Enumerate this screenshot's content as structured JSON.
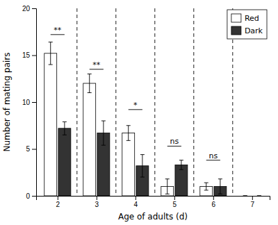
{
  "chart_data": {
    "type": "bar",
    "x": [
      2,
      3,
      4,
      5,
      6,
      7
    ],
    "series": [
      {
        "name": "Red",
        "color": "#ffffff",
        "values": [
          15.2,
          12.0,
          6.7,
          1.0,
          1.0,
          0
        ],
        "errors": [
          1.2,
          1.0,
          0.8,
          0.8,
          0.4,
          0
        ]
      },
      {
        "name": "Dark",
        "color": "#333333",
        "values": [
          7.2,
          6.7,
          3.2,
          3.3,
          1.0,
          0
        ],
        "errors": [
          0.7,
          1.3,
          1.2,
          0.5,
          0.8,
          0
        ]
      }
    ],
    "annotations": [
      {
        "text": "**",
        "x": 2,
        "y": 17.2
      },
      {
        "text": "**",
        "x": 3,
        "y": 13.5
      },
      {
        "text": "*",
        "x": 4,
        "y": 9.2
      },
      {
        "text": "ns",
        "x": 5,
        "y": 5.3
      },
      {
        "text": "ns",
        "x": 6,
        "y": 3.8
      }
    ],
    "xlabel": "Age of adults (d)",
    "ylabel": "Number of mating pairs",
    "xlim": [
      1.45,
      7.45
    ],
    "xticks": [
      2,
      3,
      4,
      5,
      6,
      7
    ],
    "ylim": [
      0,
      20
    ],
    "yticks": [
      0,
      5,
      10,
      15,
      20
    ],
    "legend": "upper right"
  }
}
